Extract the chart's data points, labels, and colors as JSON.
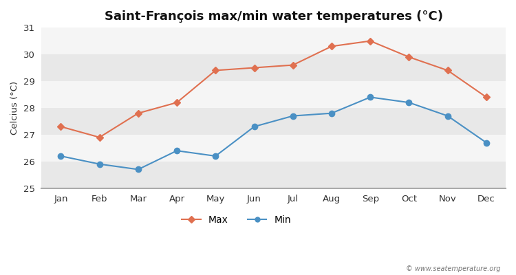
{
  "title": "Saint-François max/min water temperatures (°C)",
  "ylabel": "Celcius (°C)",
  "months": [
    "Jan",
    "Feb",
    "Mar",
    "Apr",
    "May",
    "Jun",
    "Jul",
    "Aug",
    "Sep",
    "Oct",
    "Nov",
    "Dec"
  ],
  "max_values": [
    27.3,
    26.9,
    27.8,
    28.2,
    29.4,
    29.5,
    29.6,
    30.3,
    30.5,
    29.9,
    29.4,
    28.4
  ],
  "min_values": [
    26.2,
    25.9,
    25.7,
    26.4,
    26.2,
    27.3,
    27.7,
    27.8,
    28.4,
    28.2,
    27.7,
    26.7
  ],
  "max_color": "#e07050",
  "min_color": "#4a90c4",
  "ylim": [
    25,
    31
  ],
  "yticks": [
    25,
    26,
    27,
    28,
    29,
    30,
    31
  ],
  "fig_bg_color": "#ffffff",
  "band_colors": [
    "#e8e8e8",
    "#f5f5f5"
  ],
  "watermark": "© www.seatemperature.org",
  "legend_labels": [
    "Max",
    "Min"
  ]
}
